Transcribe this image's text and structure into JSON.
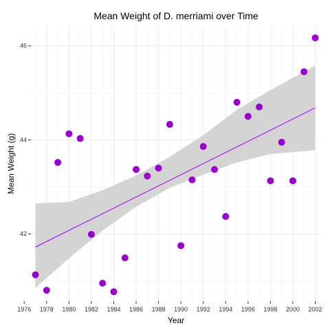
{
  "chart_data": {
    "type": "scatter",
    "title": "Mean Weight of D. merriami over Time",
    "xlabel": "Year",
    "ylabel": "Mean Weight (g)",
    "xlim": [
      1976.6,
      2002.4
    ],
    "ylim": [
      40.57,
      46.42
    ],
    "x_ticks": [
      1976,
      1978,
      1980,
      1982,
      1984,
      1986,
      1988,
      1990,
      1992,
      1994,
      1996,
      1998,
      2000,
      2002
    ],
    "y_ticks": [
      42,
      44,
      46
    ],
    "grid": true,
    "point_color": "#9900cc",
    "line_color": "#9900ff",
    "band_color": "#cccccc",
    "panel_color": "#ffffff",
    "grid_color": "#ebebeb",
    "points": {
      "x": [
        1977,
        1978,
        1979,
        1980,
        1981,
        1982,
        1983,
        1984,
        1985,
        1986,
        1987,
        1988,
        1989,
        1990,
        1991,
        1992,
        1993,
        1994,
        1995,
        1996,
        1997,
        1998,
        1999,
        2000,
        2001,
        2002
      ],
      "y": [
        41.13,
        40.8,
        43.52,
        44.13,
        44.03,
        41.99,
        40.95,
        40.77,
        41.49,
        43.37,
        43.23,
        43.4,
        44.33,
        41.75,
        43.15,
        43.86,
        43.37,
        42.37,
        44.8,
        44.5,
        44.7,
        43.13,
        43.95,
        43.13,
        45.45,
        46.17
      ]
    },
    "trend": {
      "x": [
        1977,
        2002
      ],
      "y": [
        41.72,
        44.68
      ]
    },
    "confidence_band": {
      "x": [
        1977,
        1980,
        1983,
        1986,
        1989,
        1992,
        1995,
        1998,
        2002
      ],
      "lower": [
        40.85,
        41.48,
        42.07,
        42.58,
        42.98,
        43.26,
        43.52,
        43.7,
        43.78
      ],
      "upper": [
        42.65,
        42.68,
        42.93,
        43.24,
        43.64,
        44.1,
        44.64,
        45.06,
        45.58
      ]
    }
  }
}
